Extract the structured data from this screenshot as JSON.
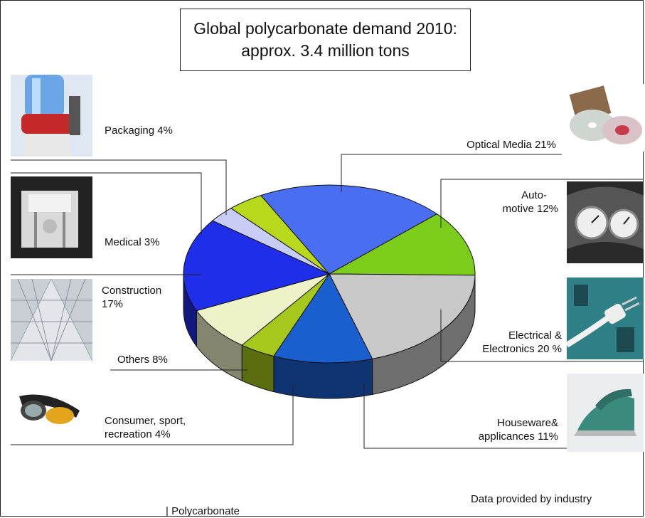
{
  "chart_data": {
    "type": "pie",
    "title": "Global polycarbonate demand 2010:",
    "subtitle": "approx. 3.4 million tons",
    "slices": [
      {
        "label": "Optical Media 21%",
        "value": 21,
        "color": "#4a6ef0"
      },
      {
        "label": "Auto-motive 12%",
        "value": 12,
        "color": "#7ccc1c"
      },
      {
        "label": "Electrical & Electronics 20 %",
        "value": 20,
        "color": "#c8c8c8"
      },
      {
        "label": "Houseware& applicances 11%",
        "value": 11,
        "color": "#1a5fd0"
      },
      {
        "label": "Consumer, sport, recreation 4%",
        "value": 4,
        "color": "#a6c81c"
      },
      {
        "label": "Others 8%",
        "value": 8,
        "color": "#eef2c8"
      },
      {
        "label": "Construction 17%",
        "value": 17,
        "color": "#1f2ee8"
      },
      {
        "label": "Medical 3%",
        "value": 3,
        "color": "#c8cdf5"
      },
      {
        "label": "Packaging 4%",
        "value": 4,
        "color": "#b8d81c"
      }
    ]
  },
  "labels": {
    "packaging": "Packaging 4%",
    "medical": "Medical 3%",
    "construction_1": "Construction",
    "construction_2": "17%",
    "others": "Others 8%",
    "consumer_1": "Consumer, sport,",
    "consumer_2": "recreation 4%",
    "optical": "Optical Media 21%",
    "auto_1": "Auto-",
    "auto_2": "motive 12%",
    "electrical_1": "Electrical &",
    "electrical_2": "Electronics 20 %",
    "houseware_1": "Houseware&",
    "houseware_2": "applicances 11%"
  },
  "footer": {
    "source": "Data provided by industry",
    "legend": "| Polycarbonate"
  },
  "icons": [
    "water-cooler-icon",
    "cd-discs-icon",
    "medical-device-icon",
    "dashboard-gauges-icon",
    "building-glass-roof-icon",
    "power-plug-icon",
    "sunglasses-icon",
    "iron-appliance-icon"
  ]
}
